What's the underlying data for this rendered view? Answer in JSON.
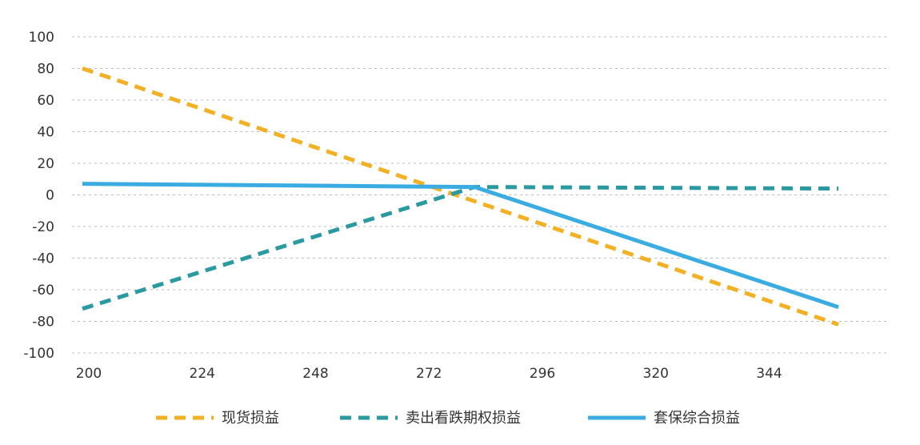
{
  "chart_data": {
    "type": "line",
    "title": "",
    "xlabel": "",
    "ylabel": "",
    "x_ticks": [
      200,
      224,
      248,
      272,
      296,
      320,
      344
    ],
    "y_ticks": [
      100,
      80,
      60,
      40,
      20,
      0,
      -20,
      -40,
      -60,
      -80,
      -100
    ],
    "y_tick_labels": [
      "100",
      "80",
      "60",
      "40",
      "20",
      "0",
      "-20",
      "-40",
      "-60",
      "-80",
      "-100"
    ],
    "xlim": [
      200,
      365
    ],
    "ylim": [
      -100,
      100
    ],
    "grid": "horizontal dashed",
    "legend_position": "bottom",
    "series": [
      {
        "name": "现货损益",
        "color": "#F2B124",
        "style": "dashed",
        "x": [
          200,
          360
        ],
        "y": [
          80,
          -82
        ]
      },
      {
        "name": "卖出看跌期权损益",
        "color": "#2A9AA0",
        "style": "dashed",
        "x": [
          200,
          283,
          360
        ],
        "y": [
          -72,
          5,
          4
        ]
      },
      {
        "name": "套保综合损益",
        "color": "#3AACE2",
        "style": "solid",
        "x": [
          200,
          283,
          360
        ],
        "y": [
          7,
          5,
          -71
        ]
      }
    ]
  }
}
